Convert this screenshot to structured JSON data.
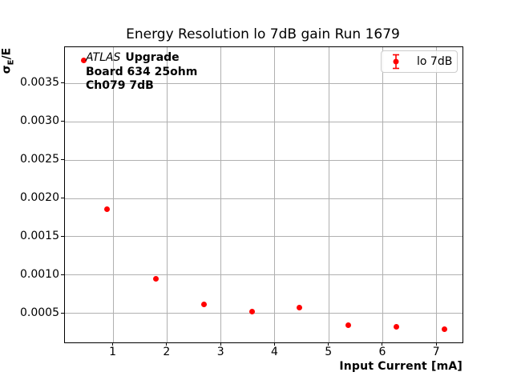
{
  "chart_data": {
    "type": "scatter",
    "title": "Energy Resolution lo 7dB gain Run 1679",
    "xlabel": "Input Current [mA]",
    "ylabel": "σ_E/E",
    "ylabel_parts": {
      "prefix": "σ",
      "sub": "E",
      "suffix": "/E"
    },
    "annotation": {
      "brand": "ATLAS",
      "line1_rest": "Upgrade",
      "line2": "Board 634 25ohm",
      "line3": "Ch079 7dB"
    },
    "legend": {
      "position": "upper right",
      "entries": [
        {
          "label": "lo 7dB",
          "marker": "errorbar-dot",
          "color": "#ff0000"
        }
      ]
    },
    "series": [
      {
        "name": "lo 7dB",
        "color": "#ff0000",
        "x": [
          0.45,
          0.89,
          1.79,
          2.68,
          3.57,
          4.46,
          5.36,
          6.26,
          7.15
        ],
        "y": [
          0.0038,
          0.00186,
          0.00095,
          0.00062,
          0.00052,
          0.00057,
          0.00034,
          0.00032,
          0.00029
        ]
      }
    ],
    "xlim": [
      0.106,
      7.48
    ],
    "ylim": [
      0.00012,
      0.003975
    ],
    "xticks": [
      1,
      2,
      3,
      4,
      5,
      6,
      7
    ],
    "xtick_labels": [
      "1",
      "2",
      "3",
      "4",
      "5",
      "6",
      "7"
    ],
    "yticks": [
      0.0005,
      0.001,
      0.0015,
      0.002,
      0.0025,
      0.003,
      0.0035
    ],
    "ytick_labels": [
      "0.0005",
      "0.0010",
      "0.0015",
      "0.0020",
      "0.0025",
      "0.0030",
      "0.0035"
    ],
    "grid": true,
    "colors": {
      "marker": "#ff0000",
      "grid": "#b0b0b0",
      "spine": "#000000",
      "legend_border": "#cccccc"
    }
  }
}
